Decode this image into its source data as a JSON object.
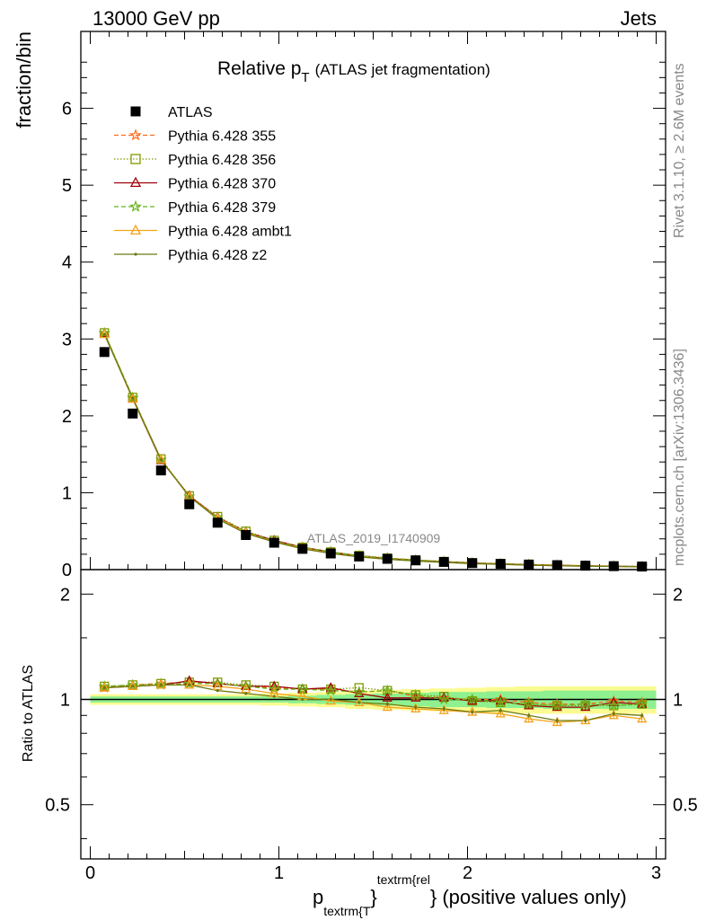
{
  "header": {
    "left": "13000 GeV pp",
    "right": "Jets"
  },
  "side_labels": {
    "rivet": "Rivet 3.1.10, ≥ 2.6M events",
    "mcplots": "mcplots.cern.ch [arXiv:1306.3436]"
  },
  "chart_data": [
    {
      "type": "scatter",
      "panel": "main",
      "title_main": "Relative p",
      "title_sub": "T",
      "title_rest": "(ATLAS jet fragmentation)",
      "ylabel": "fraction/bin",
      "analysis_label": "ATLAS_2019_I1740909",
      "xlim": [
        -0.05,
        3.05
      ],
      "ylim": [
        0,
        7
      ],
      "yticks": [
        0,
        1,
        2,
        3,
        4,
        5,
        6
      ],
      "x": [
        0.075,
        0.225,
        0.375,
        0.525,
        0.675,
        0.825,
        0.975,
        1.125,
        1.275,
        1.425,
        1.575,
        1.725,
        1.875,
        2.025,
        2.175,
        2.325,
        2.475,
        2.625,
        2.775,
        2.925
      ],
      "series": [
        {
          "name": "ATLAS",
          "color": "#000000",
          "marker": "square",
          "line": "none",
          "values": [
            2.83,
            2.03,
            1.29,
            0.85,
            0.61,
            0.45,
            0.35,
            0.27,
            0.21,
            0.17,
            0.14,
            0.12,
            0.1,
            0.085,
            0.075,
            0.066,
            0.058,
            0.051,
            0.045,
            0.04
          ]
        },
        {
          "name": "Pythia 6.428 355",
          "color": "#ff6a1a",
          "marker": "star",
          "line": "dashed",
          "values": [
            3.07,
            2.23,
            1.43,
            0.95,
            0.68,
            0.49,
            0.37,
            0.29,
            0.23,
            0.18,
            0.15,
            0.125,
            0.105,
            0.087,
            0.076,
            0.066,
            0.057,
            0.05,
            0.045,
            0.04
          ]
        },
        {
          "name": "Pythia 6.428 356",
          "color": "#7f9b00",
          "marker": "square-open",
          "line": "dotted",
          "values": [
            3.08,
            2.24,
            1.44,
            0.96,
            0.69,
            0.5,
            0.38,
            0.29,
            0.23,
            0.185,
            0.15,
            0.125,
            0.105,
            0.087,
            0.076,
            0.066,
            0.057,
            0.05,
            0.044,
            0.039
          ]
        },
        {
          "name": "Pythia 6.428 370",
          "color": "#a0000a",
          "marker": "triangle-open",
          "line": "solid",
          "values": [
            3.07,
            2.22,
            1.42,
            0.96,
            0.68,
            0.49,
            0.38,
            0.29,
            0.23,
            0.175,
            0.145,
            0.12,
            0.102,
            0.086,
            0.074,
            0.064,
            0.056,
            0.049,
            0.044,
            0.039
          ]
        },
        {
          "name": "Pythia 6.428 379",
          "color": "#66b31a",
          "marker": "star",
          "line": "dashed",
          "values": [
            3.08,
            2.24,
            1.43,
            0.95,
            0.68,
            0.49,
            0.37,
            0.29,
            0.23,
            0.18,
            0.15,
            0.125,
            0.103,
            0.086,
            0.074,
            0.064,
            0.056,
            0.049,
            0.044,
            0.039
          ]
        },
        {
          "name": "Pythia 6.428 ambt1",
          "color": "#f5a21b",
          "marker": "triangle-open",
          "line": "solid",
          "values": [
            3.06,
            2.22,
            1.43,
            0.95,
            0.67,
            0.48,
            0.36,
            0.28,
            0.21,
            0.17,
            0.135,
            0.115,
            0.095,
            0.078,
            0.069,
            0.059,
            0.052,
            0.045,
            0.041,
            0.036
          ]
        },
        {
          "name": "Pythia 6.428 z2",
          "color": "#6b7a12",
          "marker": "dot",
          "line": "solid",
          "values": [
            3.06,
            2.23,
            1.43,
            0.95,
            0.66,
            0.47,
            0.36,
            0.27,
            0.21,
            0.165,
            0.135,
            0.112,
            0.094,
            0.078,
            0.069,
            0.058,
            0.05,
            0.044,
            0.041,
            0.036
          ]
        }
      ]
    },
    {
      "type": "line",
      "panel": "ratio",
      "ylabel": "Ratio to ATLAS",
      "xlabel_main": "p",
      "xlabel_sub": "textrm{T",
      "xlabel_sup": "textrm{rel",
      "xlabel_rest": "} (positive values only)",
      "xlim": [
        -0.05,
        3.05
      ],
      "ylim": [
        0.35,
        2.35
      ],
      "log_scale_y": true,
      "yticks": [
        0.5,
        1,
        2
      ],
      "xticks": [
        0,
        1,
        2,
        3
      ],
      "band_inner": [
        0.02,
        0.02,
        0.02,
        0.02,
        0.02,
        0.02,
        0.02,
        0.025,
        0.03,
        0.035,
        0.04,
        0.045,
        0.05,
        0.05,
        0.055,
        0.055,
        0.06,
        0.06,
        0.06,
        0.06
      ],
      "band_outer": [
        0.035,
        0.035,
        0.035,
        0.035,
        0.035,
        0.035,
        0.04,
        0.045,
        0.05,
        0.06,
        0.065,
        0.07,
        0.075,
        0.08,
        0.085,
        0.09,
        0.09,
        0.09,
        0.09,
        0.09
      ],
      "series": [
        {
          "name": "Pythia 6.428 355",
          "values": [
            1.08,
            1.1,
            1.11,
            1.12,
            1.11,
            1.09,
            1.08,
            1.07,
            1.07,
            1.05,
            1.06,
            1.02,
            1.01,
            1.0,
            1.0,
            0.98,
            0.97,
            0.97,
            0.99,
            0.98
          ]
        },
        {
          "name": "Pythia 6.428 356",
          "values": [
            1.09,
            1.1,
            1.11,
            1.12,
            1.12,
            1.1,
            1.09,
            1.07,
            1.07,
            1.08,
            1.06,
            1.03,
            1.02,
            0.99,
            0.98,
            0.97,
            0.96,
            0.96,
            0.96,
            0.97
          ]
        },
        {
          "name": "Pythia 6.428 370",
          "values": [
            1.08,
            1.09,
            1.1,
            1.13,
            1.11,
            1.09,
            1.09,
            1.07,
            1.08,
            1.04,
            1.01,
            1.01,
            1.01,
            0.99,
            0.99,
            0.96,
            0.95,
            0.95,
            0.98,
            0.97
          ]
        },
        {
          "name": "Pythia 6.428 379",
          "values": [
            1.09,
            1.1,
            1.1,
            1.11,
            1.11,
            1.09,
            1.07,
            1.07,
            1.06,
            1.05,
            1.06,
            1.03,
            1.0,
            1.0,
            0.98,
            0.97,
            0.96,
            0.97,
            0.96,
            0.97
          ]
        },
        {
          "name": "Pythia 6.428 ambt1",
          "values": [
            1.08,
            1.09,
            1.1,
            1.1,
            1.09,
            1.07,
            1.04,
            1.02,
            0.99,
            0.98,
            0.95,
            0.94,
            0.93,
            0.92,
            0.91,
            0.88,
            0.86,
            0.87,
            0.9,
            0.88
          ]
        },
        {
          "name": "Pythia 6.428 z2",
          "values": [
            1.08,
            1.09,
            1.1,
            1.1,
            1.06,
            1.04,
            1.02,
            1.0,
            1.0,
            0.98,
            0.97,
            0.95,
            0.94,
            0.92,
            0.93,
            0.9,
            0.87,
            0.87,
            0.91,
            0.9
          ]
        }
      ]
    }
  ]
}
